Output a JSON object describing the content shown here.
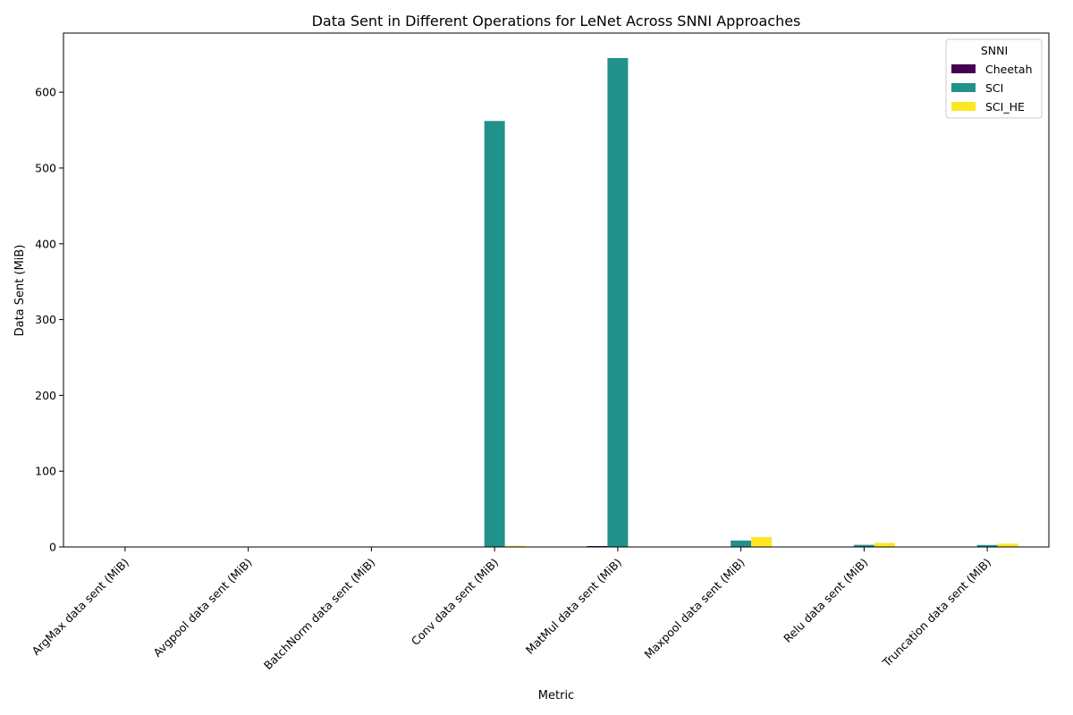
{
  "chart_data": {
    "type": "bar",
    "title": "Data Sent in Different Operations for LeNet Across SNNI Approaches",
    "xlabel": "Metric",
    "ylabel": "Data Sent (MiB)",
    "ylim": [
      0,
      678
    ],
    "yticks": [
      0,
      100,
      200,
      300,
      400,
      500,
      600
    ],
    "grid": false,
    "legend": {
      "title": "SNNI",
      "placement": "top-right"
    },
    "categories": [
      "ArgMax data sent (MiB)",
      "Avgpool data sent (MiB)",
      "BatchNorm data sent (MiB)",
      "Conv data sent (MiB)",
      "MatMul data sent (MiB)",
      "Maxpool data sent (MiB)",
      "Relu data sent (MiB)",
      "Truncation data sent (MiB)"
    ],
    "series": [
      {
        "name": "Cheetah",
        "color": "#440154",
        "values": [
          0,
          0,
          0,
          0.3,
          1.2,
          0.2,
          0.3,
          0.2
        ]
      },
      {
        "name": "SCI",
        "color": "#21918c",
        "values": [
          0,
          0,
          0,
          562,
          645,
          8.5,
          2.8,
          2.6
        ]
      },
      {
        "name": "SCI_HE",
        "color": "#fde725",
        "values": [
          0,
          0,
          0,
          1.5,
          0,
          13.2,
          5.4,
          4.3
        ]
      }
    ]
  }
}
